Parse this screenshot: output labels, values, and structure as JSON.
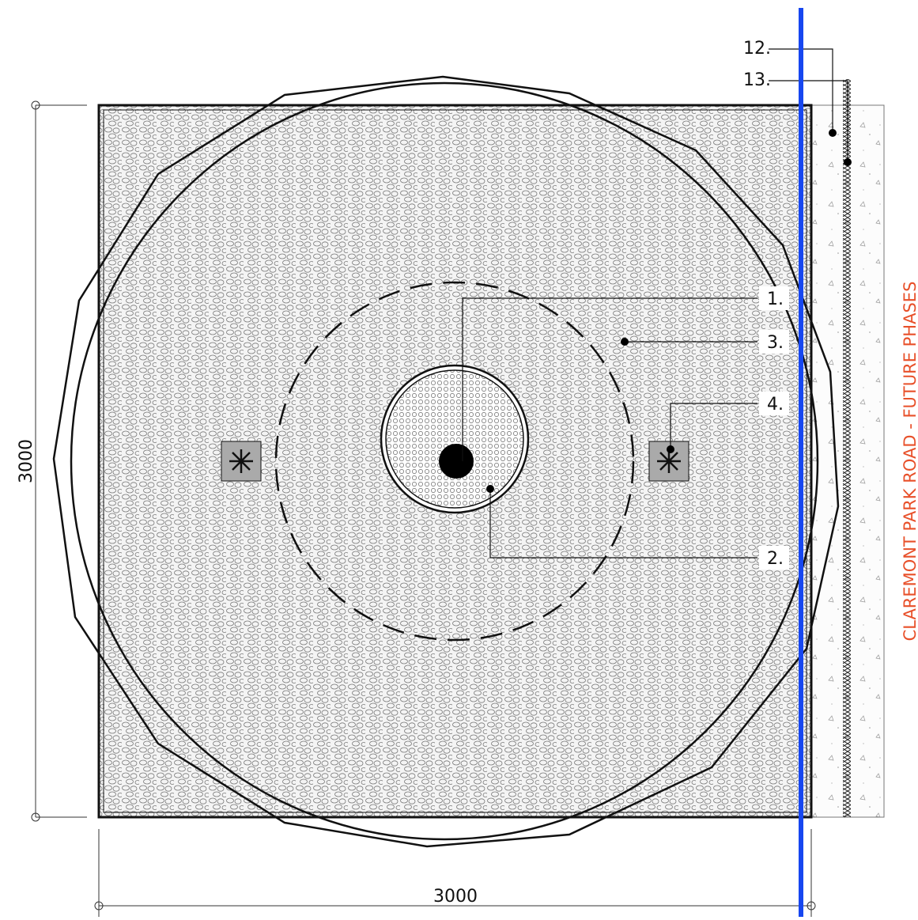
{
  "callouts": [
    {
      "label": "1."
    },
    {
      "label": "2."
    },
    {
      "label": "3."
    },
    {
      "label": "4."
    },
    {
      "label": "12."
    },
    {
      "label": "13."
    }
  ],
  "dimensions": {
    "vertical": "3000",
    "horizontal": "3000"
  },
  "road_label": "CLAREMONT PARK ROAD - FUTURE PHASES"
}
